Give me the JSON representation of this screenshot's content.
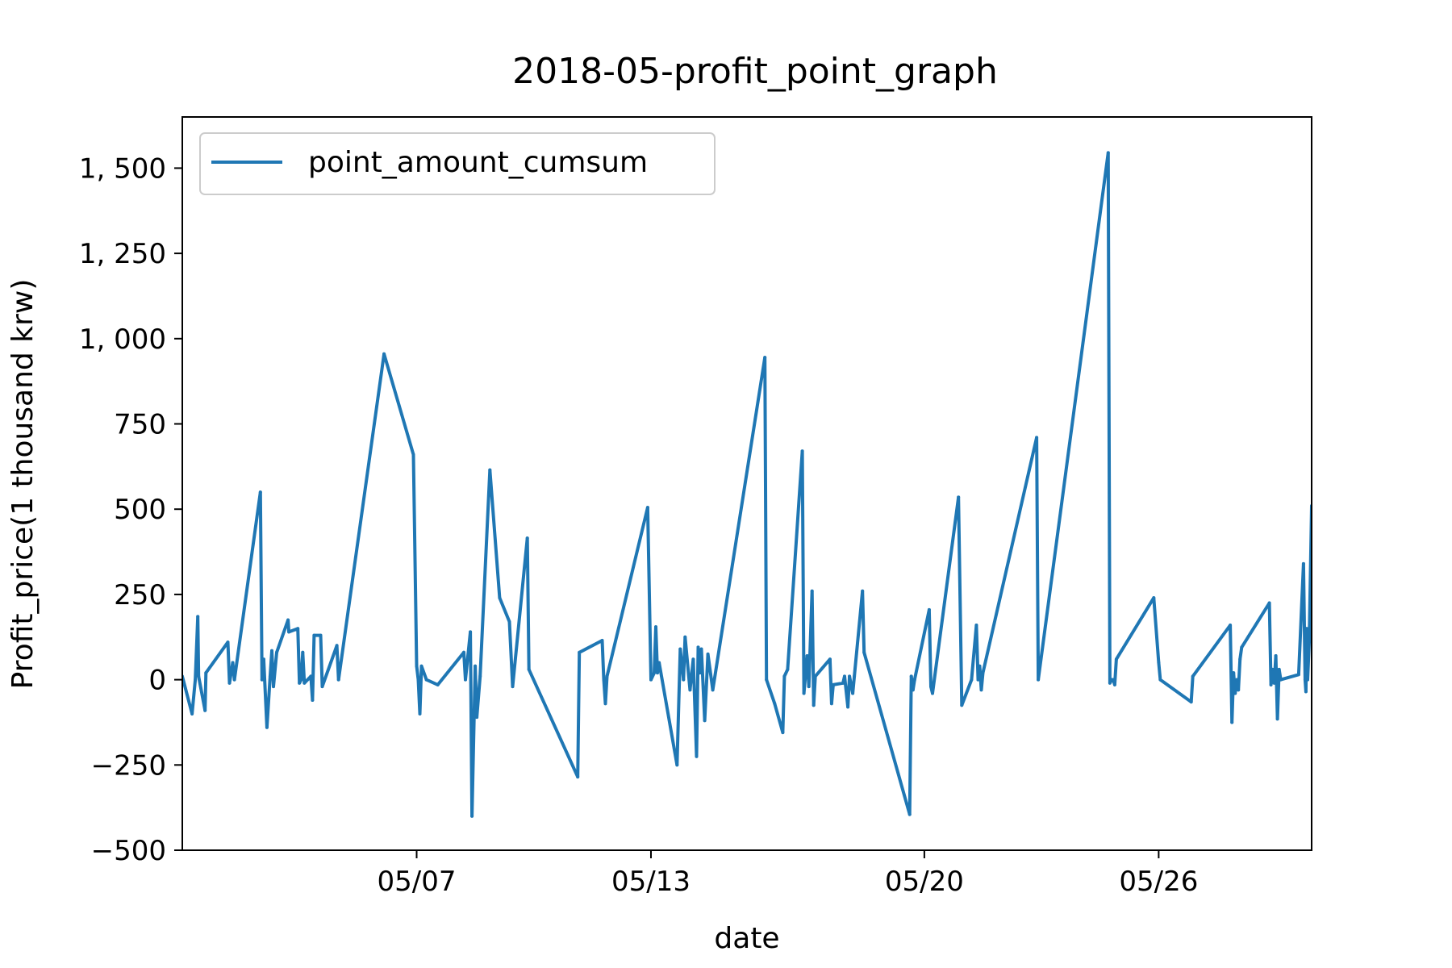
{
  "chart_data": {
    "type": "line",
    "title": "2018-05-profit_point_graph",
    "xlabel": "date",
    "ylabel": "Profit_price(1 thousand krw)",
    "ylim": [
      -500,
      1650
    ],
    "xlim": [
      "2018-05-01T00:00",
      "2018-05-29T22:00"
    ],
    "x_ticks": [
      "2018-05-07",
      "2018-05-13",
      "2018-05-20",
      "2018-05-26"
    ],
    "x_tick_labels": [
      "05/07",
      "05/13",
      "05/20",
      "05/26"
    ],
    "y_ticks": [
      -500,
      -250,
      0,
      250,
      500,
      750,
      1000,
      1250,
      1500
    ],
    "y_tick_labels": [
      "−500",
      "−250",
      "0",
      "250",
      "500",
      "750",
      "1, 000",
      "1, 250",
      "1, 500"
    ],
    "grid": false,
    "legend_position": "top-left",
    "series": [
      {
        "name": "point_amount_cumsum",
        "color": "#1f77b4",
        "points": [
          [
            "2018-05-01T00:00",
            10
          ],
          [
            "2018-05-01T06:00",
            -100
          ],
          [
            "2018-05-01T08:00",
            0
          ],
          [
            "2018-05-01T09:30",
            185
          ],
          [
            "2018-05-01T10:00",
            10
          ],
          [
            "2018-05-01T14:00",
            -90
          ],
          [
            "2018-05-01T14:30",
            20
          ],
          [
            "2018-05-02T04:00",
            110
          ],
          [
            "2018-05-02T05:00",
            -10
          ],
          [
            "2018-05-02T07:00",
            50
          ],
          [
            "2018-05-02T08:00",
            0
          ],
          [
            "2018-05-03T00:00",
            550
          ],
          [
            "2018-05-03T01:00",
            0
          ],
          [
            "2018-05-03T02:00",
            60
          ],
          [
            "2018-05-03T04:00",
            -140
          ],
          [
            "2018-05-03T06:00",
            10
          ],
          [
            "2018-05-03T07:00",
            85
          ],
          [
            "2018-05-03T08:00",
            -20
          ],
          [
            "2018-05-03T10:00",
            80
          ],
          [
            "2018-05-03T17:00",
            175
          ],
          [
            "2018-05-03T17:30",
            140
          ],
          [
            "2018-05-03T23:00",
            150
          ],
          [
            "2018-05-04T00:00",
            -10
          ],
          [
            "2018-05-04T01:00",
            0
          ],
          [
            "2018-05-04T02:00",
            80
          ],
          [
            "2018-05-04T03:00",
            -10
          ],
          [
            "2018-05-04T07:00",
            10
          ],
          [
            "2018-05-04T08:00",
            -60
          ],
          [
            "2018-05-04T09:00",
            130
          ],
          [
            "2018-05-04T13:00",
            130
          ],
          [
            "2018-05-04T14:00",
            -20
          ],
          [
            "2018-05-04T23:00",
            100
          ],
          [
            "2018-05-05T00:00",
            0
          ],
          [
            "2018-05-06T04:00",
            955
          ],
          [
            "2018-05-06T22:00",
            660
          ],
          [
            "2018-05-07T00:00",
            40
          ],
          [
            "2018-05-07T01:00",
            0
          ],
          [
            "2018-05-07T02:00",
            -100
          ],
          [
            "2018-05-07T03:00",
            40
          ],
          [
            "2018-05-07T06:00",
            0
          ],
          [
            "2018-05-07T13:00",
            -15
          ],
          [
            "2018-05-08T05:00",
            80
          ],
          [
            "2018-05-08T06:00",
            0
          ],
          [
            "2018-05-08T09:00",
            140
          ],
          [
            "2018-05-08T10:00",
            -400
          ],
          [
            "2018-05-08T12:00",
            40
          ],
          [
            "2018-05-08T13:00",
            -110
          ],
          [
            "2018-05-08T15:00",
            10
          ],
          [
            "2018-05-08T21:00",
            615
          ],
          [
            "2018-05-09T03:00",
            240
          ],
          [
            "2018-05-09T09:00",
            170
          ],
          [
            "2018-05-09T11:00",
            -20
          ],
          [
            "2018-05-09T20:00",
            415
          ],
          [
            "2018-05-09T21:00",
            30
          ],
          [
            "2018-05-11T03:00",
            -285
          ],
          [
            "2018-05-11T04:00",
            80
          ],
          [
            "2018-05-11T18:00",
            115
          ],
          [
            "2018-05-11T19:00",
            0
          ],
          [
            "2018-05-11T20:00",
            -70
          ],
          [
            "2018-05-11T21:00",
            10
          ],
          [
            "2018-05-12T22:00",
            505
          ],
          [
            "2018-05-13T00:00",
            0
          ],
          [
            "2018-05-13T02:00",
            20
          ],
          [
            "2018-05-13T03:00",
            155
          ],
          [
            "2018-05-13T04:00",
            20
          ],
          [
            "2018-05-13T05:00",
            50
          ],
          [
            "2018-05-13T16:00",
            -250
          ],
          [
            "2018-05-13T18:00",
            90
          ],
          [
            "2018-05-13T20:00",
            0
          ],
          [
            "2018-05-13T21:00",
            125
          ],
          [
            "2018-05-14T00:00",
            -30
          ],
          [
            "2018-05-14T02:00",
            60
          ],
          [
            "2018-05-14T04:00",
            -225
          ],
          [
            "2018-05-14T05:00",
            95
          ],
          [
            "2018-05-14T06:00",
            20
          ],
          [
            "2018-05-14T07:00",
            90
          ],
          [
            "2018-05-14T09:00",
            -120
          ],
          [
            "2018-05-14T11:00",
            75
          ],
          [
            "2018-05-14T14:00",
            -30
          ],
          [
            "2018-05-15T22:00",
            945
          ],
          [
            "2018-05-15T23:00",
            0
          ],
          [
            "2018-05-16T04:00",
            -70
          ],
          [
            "2018-05-16T09:00",
            -155
          ],
          [
            "2018-05-16T10:00",
            10
          ],
          [
            "2018-05-16T12:00",
            30
          ],
          [
            "2018-05-16T21:00",
            670
          ],
          [
            "2018-05-16T22:00",
            -40
          ],
          [
            "2018-05-17T00:00",
            70
          ],
          [
            "2018-05-17T01:00",
            -20
          ],
          [
            "2018-05-17T03:00",
            260
          ],
          [
            "2018-05-17T04:00",
            -75
          ],
          [
            "2018-05-17T05:00",
            10
          ],
          [
            "2018-05-17T14:00",
            60
          ],
          [
            "2018-05-17T15:00",
            -70
          ],
          [
            "2018-05-17T16:00",
            -15
          ],
          [
            "2018-05-17T22:00",
            -10
          ],
          [
            "2018-05-17T23:00",
            10
          ],
          [
            "2018-05-18T01:00",
            -80
          ],
          [
            "2018-05-18T02:00",
            10
          ],
          [
            "2018-05-18T04:00",
            -40
          ],
          [
            "2018-05-18T05:00",
            10
          ],
          [
            "2018-05-18T10:00",
            260
          ],
          [
            "2018-05-18T11:00",
            80
          ],
          [
            "2018-05-19T15:00",
            -395
          ],
          [
            "2018-05-19T16:00",
            10
          ],
          [
            "2018-05-19T17:00",
            -30
          ],
          [
            "2018-05-19T18:00",
            0
          ],
          [
            "2018-05-20T03:00",
            205
          ],
          [
            "2018-05-20T04:00",
            -20
          ],
          [
            "2018-05-20T05:00",
            -40
          ],
          [
            "2018-05-20T21:00",
            535
          ],
          [
            "2018-05-20T23:00",
            -75
          ],
          [
            "2018-05-21T05:00",
            0
          ],
          [
            "2018-05-21T08:00",
            160
          ],
          [
            "2018-05-21T09:00",
            0
          ],
          [
            "2018-05-21T10:00",
            40
          ],
          [
            "2018-05-21T11:00",
            -30
          ],
          [
            "2018-05-21T12:00",
            20
          ],
          [
            "2018-05-22T21:00",
            710
          ],
          [
            "2018-05-22T22:00",
            0
          ],
          [
            "2018-05-24T17:00",
            1545
          ],
          [
            "2018-05-24T18:00",
            -10
          ],
          [
            "2018-05-24T19:00",
            0
          ],
          [
            "2018-05-24T20:00",
            0
          ],
          [
            "2018-05-24T21:00",
            -15
          ],
          [
            "2018-05-24T22:00",
            60
          ],
          [
            "2018-05-25T21:00",
            240
          ],
          [
            "2018-05-26T00:00",
            50
          ],
          [
            "2018-05-26T01:00",
            0
          ],
          [
            "2018-05-26T20:00",
            -65
          ],
          [
            "2018-05-26T21:00",
            10
          ],
          [
            "2018-05-27T20:00",
            160
          ],
          [
            "2018-05-27T21:00",
            -125
          ],
          [
            "2018-05-27T22:00",
            20
          ],
          [
            "2018-05-27T23:00",
            -40
          ],
          [
            "2018-05-28T00:00",
            0
          ],
          [
            "2018-05-28T01:00",
            -30
          ],
          [
            "2018-05-28T02:00",
            60
          ],
          [
            "2018-05-28T03:00",
            95
          ],
          [
            "2018-05-28T20:00",
            225
          ],
          [
            "2018-05-28T21:00",
            -15
          ],
          [
            "2018-05-28T22:00",
            30
          ],
          [
            "2018-05-28T23:00",
            -10
          ],
          [
            "2018-05-29T00:00",
            70
          ],
          [
            "2018-05-29T01:00",
            -115
          ],
          [
            "2018-05-29T02:00",
            30
          ],
          [
            "2018-05-29T03:00",
            0
          ],
          [
            "2018-05-29T14:00",
            15
          ],
          [
            "2018-05-29T17:00",
            340
          ],
          [
            "2018-05-29T18:00",
            0
          ],
          [
            "2018-05-29T18:30",
            -35
          ],
          [
            "2018-05-29T19:00",
            150
          ],
          [
            "2018-05-29T19:30",
            0
          ],
          [
            "2018-05-29T20:30",
            110
          ],
          [
            "2018-05-29T22:00",
            510
          ]
        ]
      }
    ]
  }
}
